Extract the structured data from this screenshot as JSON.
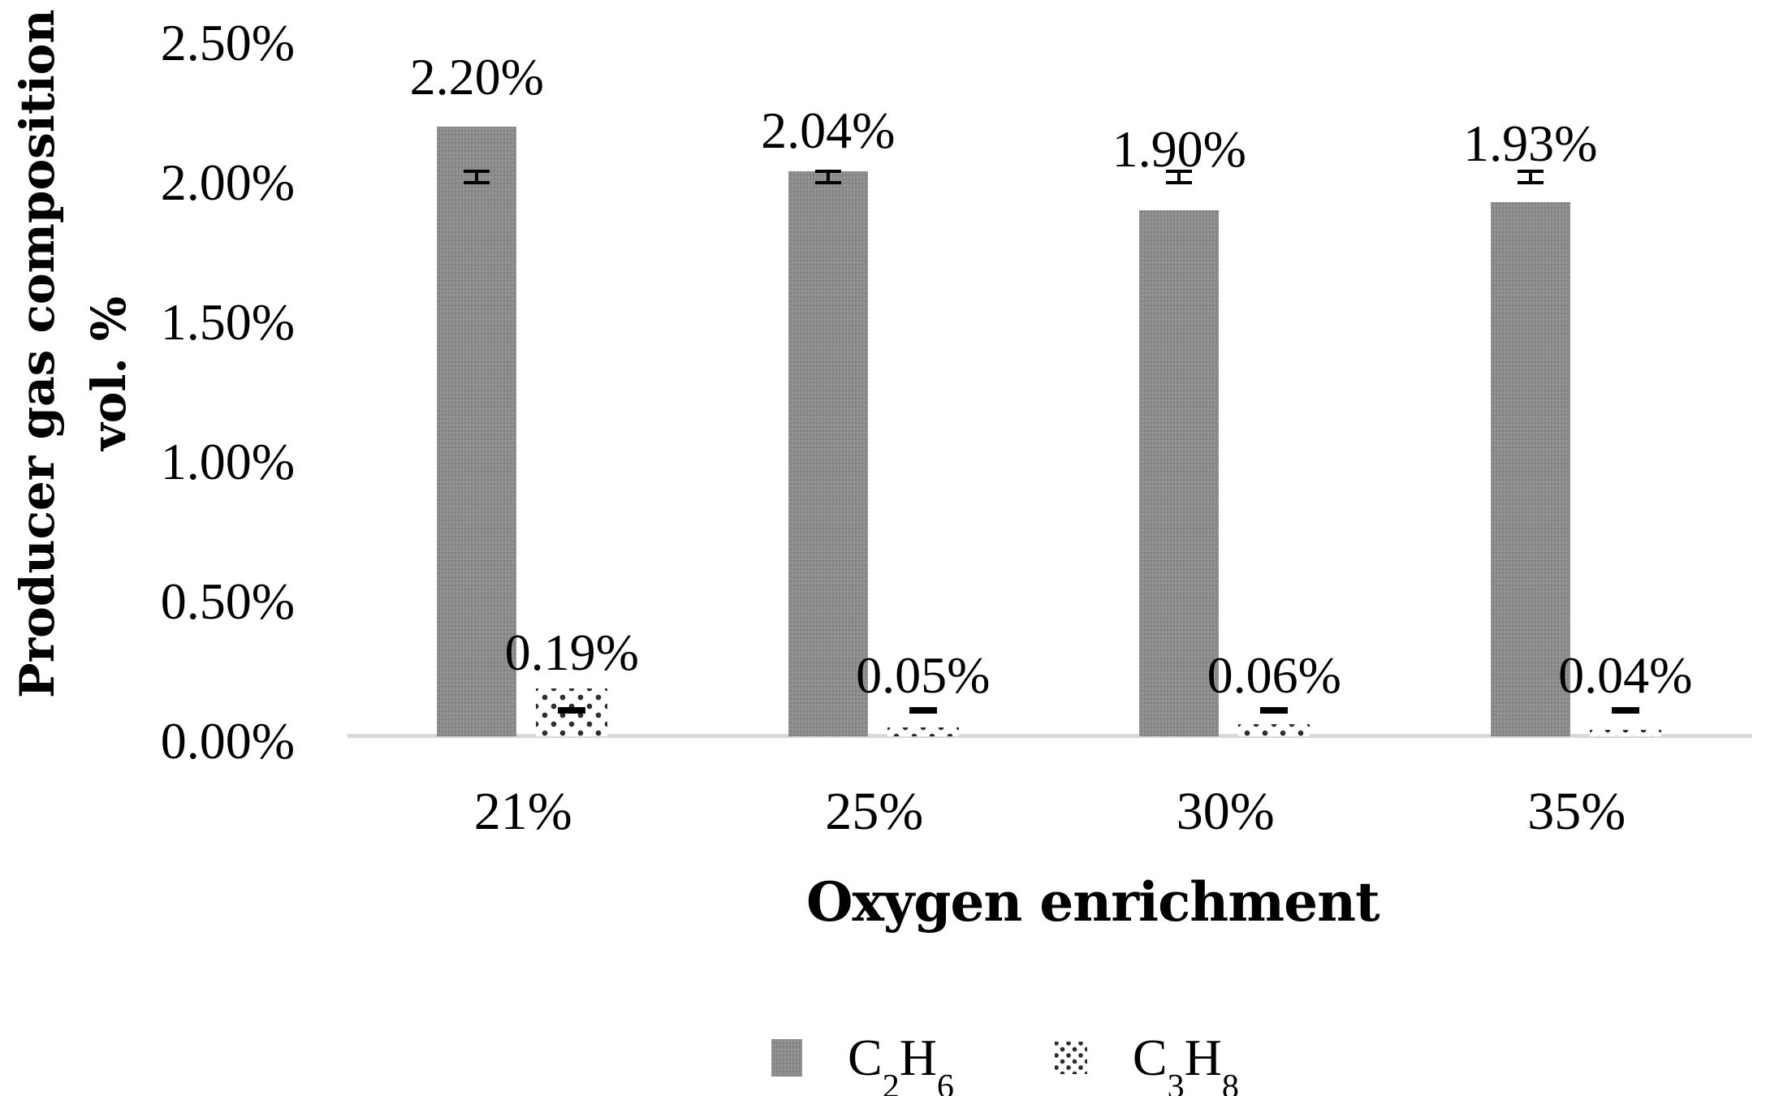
{
  "chart_data": {
    "type": "bar",
    "title": "",
    "xlabel": "Oxygen enrichment",
    "ylabel": "Producer gas composition vol. %",
    "ylabel_lines": [
      "Producer gas composition",
      "vol. %"
    ],
    "categories": [
      "21%",
      "25%",
      "30%",
      "35%"
    ],
    "series": [
      {
        "name": "C2H6",
        "values": [
          2.2,
          2.04,
          1.9,
          1.93
        ],
        "data_labels": [
          "2.20%",
          "2.04%",
          "1.90%",
          "1.93%"
        ],
        "fill": "solid-gray",
        "error_bar": {
          "style": "i-beam",
          "center_value": 2.02,
          "plus_minus": 0.026
        }
      },
      {
        "name": "C3H8",
        "values": [
          0.19,
          0.05,
          0.06,
          0.04
        ],
        "data_labels": [
          "0.19%",
          "0.05%",
          "0.06%",
          "0.04%"
        ],
        "fill": "dotted-pattern",
        "error_bar": {
          "style": "dash",
          "center_value": 0.11,
          "plus_minus": 0
        }
      }
    ],
    "yticks": {
      "labels": [
        "0.00%",
        "0.50%",
        "1.00%",
        "1.50%",
        "2.00%",
        "2.50%"
      ],
      "values": [
        0,
        0.5,
        1.0,
        1.5,
        2.0,
        2.5
      ]
    },
    "ylim": [
      0,
      2.5
    ],
    "grid": false,
    "legend_position": "bottom",
    "legend": [
      "C2H6",
      "C3H8"
    ],
    "colors": {
      "bar_fill": "#8a8a8a",
      "dot_color": "#2e2e2e",
      "baseline": "#d9d9d9",
      "text": "#000000"
    }
  }
}
